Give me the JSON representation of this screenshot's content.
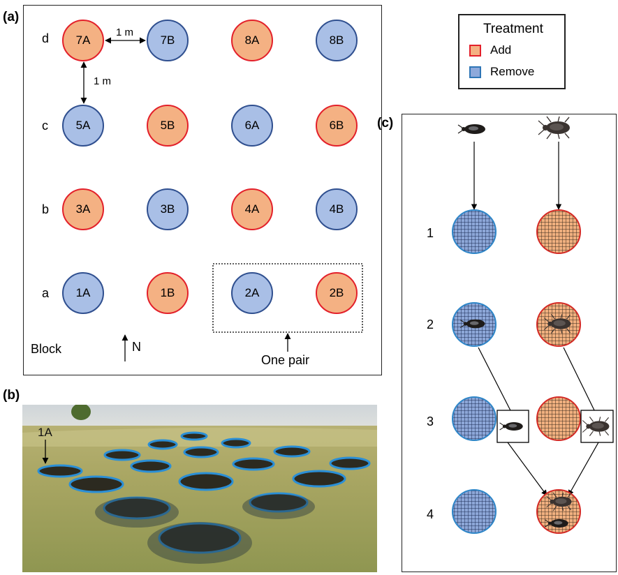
{
  "panels": {
    "a": "(a)",
    "b": "(b)",
    "c": "(c)"
  },
  "legend": {
    "title": "Treatment",
    "add": "Add",
    "remove": "Remove",
    "add_fill": "#f4b183",
    "add_stroke": "#e3202a",
    "remove_fill": "#a9bfe6",
    "remove_stroke": "#2f4f8f"
  },
  "grid": {
    "row_labels": [
      "d",
      "c",
      "b",
      "a"
    ],
    "rows": [
      [
        {
          "label": "7A",
          "t": "add"
        },
        {
          "label": "7B",
          "t": "remove"
        },
        {
          "label": "8A",
          "t": "add"
        },
        {
          "label": "8B",
          "t": "remove"
        }
      ],
      [
        {
          "label": "5A",
          "t": "remove"
        },
        {
          "label": "5B",
          "t": "add"
        },
        {
          "label": "6A",
          "t": "remove"
        },
        {
          "label": "6B",
          "t": "add"
        }
      ],
      [
        {
          "label": "3A",
          "t": "add"
        },
        {
          "label": "3B",
          "t": "remove"
        },
        {
          "label": "4A",
          "t": "add"
        },
        {
          "label": "4B",
          "t": "remove"
        }
      ],
      [
        {
          "label": "1A",
          "t": "remove"
        },
        {
          "label": "1B",
          "t": "add"
        },
        {
          "label": "2A",
          "t": "remove"
        },
        {
          "label": "2B",
          "t": "add"
        }
      ]
    ],
    "dist_h": "1 m",
    "dist_v": "1 m",
    "block_label": "Block",
    "north_label": "N",
    "pair_label": "One pair"
  },
  "photo": {
    "pond_label": "1A"
  },
  "steps": {
    "labels": [
      "1",
      "2",
      "3",
      "4"
    ]
  }
}
